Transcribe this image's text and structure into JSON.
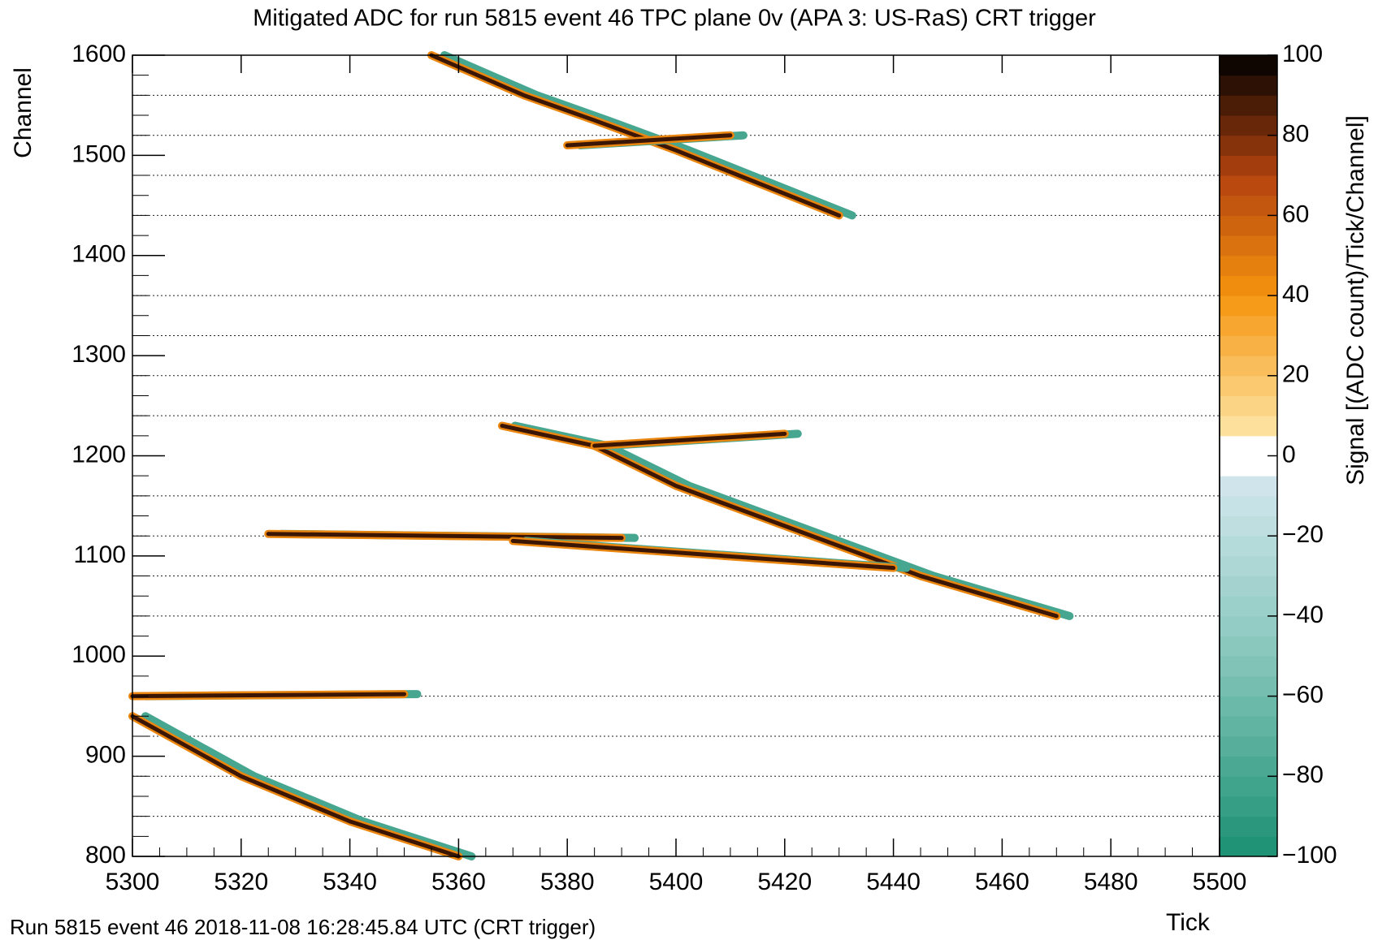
{
  "chart_data": {
    "type": "heatmap",
    "title": "Mitigated ADC for run 5815 event 46 TPC plane 0v (APA 3: US-RaS) CRT trigger",
    "x_label": "Tick",
    "y_label": "Channel",
    "z_label": "Signal [(ADC count)/Tick/Channel]",
    "footer": "Run 5815 event 46 2018-11-08 16:28:45.84 UTC (CRT trigger)",
    "xlim": [
      5300,
      5500
    ],
    "xticks": [
      5300,
      5320,
      5340,
      5360,
      5380,
      5400,
      5420,
      5440,
      5460,
      5480,
      5500
    ],
    "ylim": [
      800,
      1600
    ],
    "yticks": [
      800,
      900,
      1000,
      1100,
      1200,
      1300,
      1400,
      1500,
      1600
    ],
    "zlim": [
      -100,
      100
    ],
    "zticks": [
      {
        "value": -100,
        "label": "−100"
      },
      {
        "value": -80,
        "label": "−80"
      },
      {
        "value": -60,
        "label": "−60"
      },
      {
        "value": -40,
        "label": "−40"
      },
      {
        "value": -20,
        "label": "−20"
      },
      0,
      20,
      40,
      60,
      80,
      100
    ],
    "colormap": [
      [
        -100,
        "#1b9073"
      ],
      [
        -50,
        "#86c6bb"
      ],
      [
        -5,
        "#d3e7ee"
      ],
      [
        0,
        "#ffffff"
      ],
      [
        5,
        "#fde6a6"
      ],
      [
        40,
        "#f5940f"
      ],
      [
        70,
        "#b3420f"
      ],
      [
        100,
        "#000000"
      ]
    ],
    "hlines": [
      840,
      880,
      920,
      960,
      1040,
      1080,
      1120,
      1160,
      1240,
      1280,
      1320,
      1360,
      1440,
      1480,
      1520,
      1560
    ],
    "tracks": [
      {
        "x": [
          5300,
          5320,
          5340,
          5360
        ],
        "y": [
          940,
          880,
          835,
          800
        ]
      },
      {
        "x": [
          5355,
          5372,
          5385,
          5400,
          5430
        ],
        "y": [
          1600,
          1560,
          1535,
          1505,
          1440
        ]
      },
      {
        "x": [
          5368,
          5385,
          5400,
          5420,
          5445,
          5470
        ],
        "y": [
          1230,
          1210,
          1170,
          1130,
          1080,
          1040
        ]
      },
      {
        "x": [
          5385,
          5420
        ],
        "y": [
          1210,
          1222
        ]
      },
      {
        "x": [
          5325,
          5390
        ],
        "y": [
          1122,
          1118
        ]
      },
      {
        "x": [
          5370,
          5440
        ],
        "y": [
          1115,
          1088
        ]
      },
      {
        "x": [
          5300,
          5350
        ],
        "y": [
          960,
          962
        ]
      },
      {
        "x": [
          5380,
          5410
        ],
        "y": [
          1510,
          1520
        ]
      }
    ]
  }
}
